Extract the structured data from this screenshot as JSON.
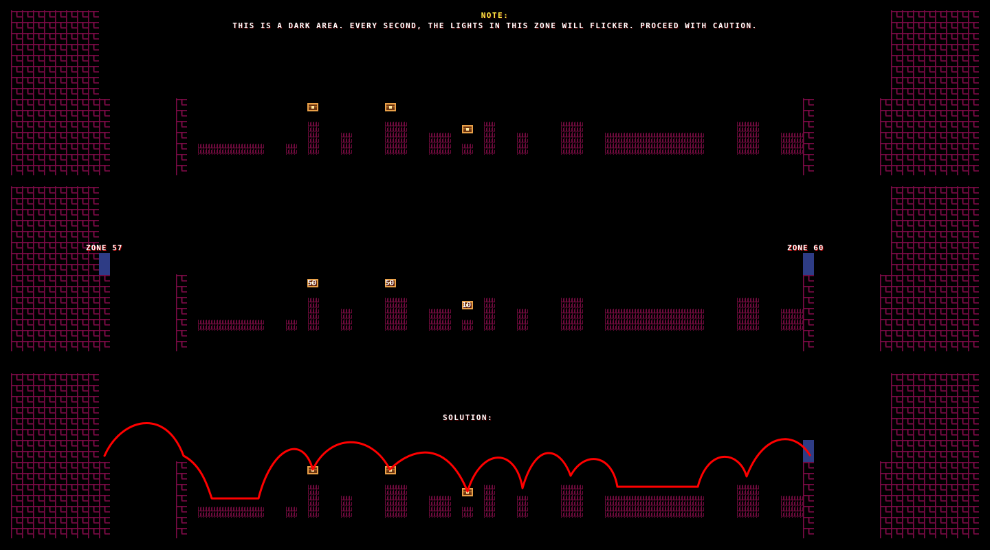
{
  "note": {
    "title": "NOTE:",
    "message": "THIS IS A DARK AREA. EVERY SECOND, THE LIGHTS IN THIS ZONE WILL FLICKER. PROCEED WITH CAUTION."
  },
  "zones": {
    "left_label": "ZONE 57",
    "right_label": "ZONE 60"
  },
  "coin_values": [
    "50",
    "50",
    "10"
  ],
  "solution_label": "SOLUTION:",
  "colors": {
    "background": "#000000",
    "brick": "#7a0a45",
    "platform": "#6e0a3c",
    "door": "#2e3c85",
    "chest": "#e8a048",
    "solution_path": "#ff0000",
    "note_title": "#ffee44"
  }
}
